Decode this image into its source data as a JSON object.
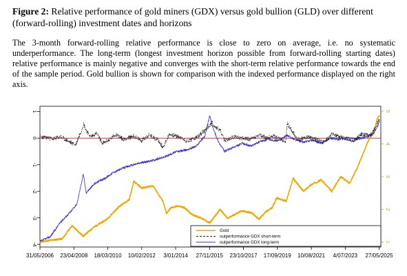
{
  "figure": {
    "label": "Figure 2:",
    "title": " Relative performance of gold miners (GDX) versus gold bullion (GLD) over different (forward-rolling) investment dates and horizons",
    "caption": "The 3-month forward-rolling relative performance is close to zero on average, i.e. no systematic underperformance. The long-term (longest investment horizon possible from forward-rolling starting dates) relative performance is mainly negative and converges with the short-term relative performance towards the end of the sample period. Gold bullion is shown for comparison with the indexed performance displayed on the right axis."
  },
  "colors": {
    "gold": "#f0a800",
    "short_term": "#222222",
    "long_term": "#3a32c8",
    "zero_line": "#e53030",
    "right_axis": "#c9a227"
  },
  "chart_data": {
    "type": "line",
    "x_tick_labels": [
      "31/05/2006",
      "23/04/2008",
      "18/03/2010",
      "10/02/2012",
      "3/01/2014",
      "27/11/2015",
      "23/10/2017",
      "17/09/2019",
      "10/08/2021",
      "4/07/2023",
      "27/05/2025"
    ],
    "x_range": [
      "2006-05-31",
      "2025-06-30"
    ],
    "y_left": {
      "ticks": [
        "1",
        "0",
        "-1",
        "-2",
        "-3",
        "-4"
      ],
      "range": [
        -4.1,
        1.2
      ]
    },
    "y_right": {
      "ticks": [
        "5",
        "4",
        "3",
        "2",
        "1"
      ],
      "range": [
        0.85,
        5.15
      ]
    },
    "reference_line": {
      "axis": "left",
      "y": 0
    },
    "legend": {
      "position": "bottom-right",
      "entries": [
        "Gold",
        "outperformance GDX short-term",
        "outperformance GDX long-term"
      ]
    },
    "series": [
      {
        "name": "Gold",
        "axis": "right",
        "style": "solid",
        "points": [
          [
            "2006-05-31",
            1.0
          ],
          [
            "2007-03-01",
            1.07
          ],
          [
            "2007-09-01",
            1.1
          ],
          [
            "2008-03-15",
            1.5
          ],
          [
            "2008-11-01",
            1.18
          ],
          [
            "2009-06-01",
            1.45
          ],
          [
            "2010-03-01",
            1.7
          ],
          [
            "2010-11-01",
            2.08
          ],
          [
            "2011-06-01",
            2.3
          ],
          [
            "2011-09-01",
            2.85
          ],
          [
            "2012-02-15",
            2.65
          ],
          [
            "2012-10-01",
            2.72
          ],
          [
            "2013-04-15",
            2.25
          ],
          [
            "2013-07-01",
            1.88
          ],
          [
            "2013-10-01",
            2.05
          ],
          [
            "2014-03-01",
            2.1
          ],
          [
            "2014-07-01",
            2.05
          ],
          [
            "2014-12-01",
            1.85
          ],
          [
            "2015-07-01",
            1.72
          ],
          [
            "2015-12-01",
            1.58
          ],
          [
            "2016-07-01",
            2.0
          ],
          [
            "2016-12-01",
            1.72
          ],
          [
            "2017-05-01",
            1.85
          ],
          [
            "2017-09-01",
            1.95
          ],
          [
            "2018-04-01",
            1.9
          ],
          [
            "2018-09-01",
            1.7
          ],
          [
            "2019-01-01",
            1.9
          ],
          [
            "2019-06-01",
            2.05
          ],
          [
            "2019-09-01",
            2.35
          ],
          [
            "2020-03-15",
            2.25
          ],
          [
            "2020-08-01",
            2.95
          ],
          [
            "2021-03-01",
            2.55
          ],
          [
            "2021-08-01",
            2.75
          ],
          [
            "2022-03-01",
            2.9
          ],
          [
            "2022-10-01",
            2.55
          ],
          [
            "2023-04-01",
            3.0
          ],
          [
            "2023-10-01",
            2.8
          ],
          [
            "2024-04-01",
            3.35
          ],
          [
            "2024-10-01",
            4.05
          ],
          [
            "2025-02-01",
            4.35
          ],
          [
            "2025-04-15",
            4.75
          ],
          [
            "2025-06-01",
            4.88
          ]
        ]
      },
      {
        "name": "outperformance GDX short-term",
        "axis": "left",
        "style": "dashed",
        "points": [
          [
            "2006-05-31",
            0.05
          ],
          [
            "2006-11-01",
            0.02
          ],
          [
            "2007-03-01",
            -0.03
          ],
          [
            "2007-08-01",
            0.05
          ],
          [
            "2008-01-01",
            -0.12
          ],
          [
            "2008-06-01",
            -0.25
          ],
          [
            "2008-11-15",
            0.55
          ],
          [
            "2008-12-15",
            0.35
          ],
          [
            "2009-04-01",
            0.05
          ],
          [
            "2009-08-01",
            0.18
          ],
          [
            "2009-12-01",
            -0.2
          ],
          [
            "2010-05-01",
            -0.05
          ],
          [
            "2010-09-01",
            0.15
          ],
          [
            "2011-02-01",
            -0.05
          ],
          [
            "2011-09-01",
            0.08
          ],
          [
            "2012-02-01",
            -0.1
          ],
          [
            "2012-07-01",
            0.12
          ],
          [
            "2013-01-01",
            -0.05
          ],
          [
            "2013-04-15",
            -0.35
          ],
          [
            "2013-09-01",
            0.15
          ],
          [
            "2014-03-01",
            0.05
          ],
          [
            "2014-09-01",
            -0.12
          ],
          [
            "2015-04-01",
            0.05
          ],
          [
            "2015-10-01",
            0.35
          ],
          [
            "2016-01-20",
            0.6
          ],
          [
            "2016-03-01",
            0.45
          ],
          [
            "2016-07-01",
            0.3
          ],
          [
            "2016-10-01",
            -0.1
          ],
          [
            "2017-05-01",
            0.05
          ],
          [
            "2018-03-01",
            -0.05
          ],
          [
            "2018-09-01",
            0.1
          ],
          [
            "2019-03-01",
            0.0
          ],
          [
            "2019-07-01",
            0.1
          ],
          [
            "2020-03-01",
            -0.15
          ],
          [
            "2020-04-01",
            0.55
          ],
          [
            "2020-07-01",
            0.3
          ],
          [
            "2020-11-01",
            -0.05
          ],
          [
            "2021-06-01",
            0.05
          ],
          [
            "2022-05-01",
            -0.15
          ],
          [
            "2022-10-01",
            0.15
          ],
          [
            "2023-06-01",
            0.0
          ],
          [
            "2024-01-01",
            -0.1
          ],
          [
            "2024-06-01",
            0.15
          ],
          [
            "2024-12-01",
            0.1
          ],
          [
            "2025-03-01",
            0.35
          ],
          [
            "2025-05-27",
            0.75
          ],
          [
            "2025-06-01",
            0.55
          ]
        ]
      },
      {
        "name": "outperformance GDX long-term",
        "axis": "left",
        "style": "solid",
        "points": [
          [
            "2006-05-31",
            -3.9
          ],
          [
            "2007-01-01",
            -3.7
          ],
          [
            "2007-08-01",
            -3.15
          ],
          [
            "2008-03-01",
            -2.75
          ],
          [
            "2008-07-01",
            -2.45
          ],
          [
            "2008-11-01",
            -1.35
          ],
          [
            "2009-01-01",
            -2.05
          ],
          [
            "2009-07-01",
            -1.7
          ],
          [
            "2010-02-01",
            -1.5
          ],
          [
            "2010-07-01",
            -1.3
          ],
          [
            "2011-03-01",
            -1.1
          ],
          [
            "2011-12-01",
            -0.95
          ],
          [
            "2012-09-01",
            -0.85
          ],
          [
            "2013-06-01",
            -0.7
          ],
          [
            "2014-01-01",
            -0.52
          ],
          [
            "2014-08-01",
            -0.45
          ],
          [
            "2015-03-01",
            -0.3
          ],
          [
            "2015-09-01",
            0.1
          ],
          [
            "2015-12-01",
            0.85
          ],
          [
            "2016-02-01",
            0.4
          ],
          [
            "2016-06-01",
            -0.15
          ],
          [
            "2016-10-01",
            -0.5
          ],
          [
            "2017-04-01",
            -0.35
          ],
          [
            "2017-10-01",
            -0.2
          ],
          [
            "2018-04-01",
            -0.3
          ],
          [
            "2018-10-01",
            -0.12
          ],
          [
            "2019-04-01",
            -0.05
          ],
          [
            "2019-10-01",
            -0.1
          ],
          [
            "2020-04-01",
            0.1
          ],
          [
            "2020-09-01",
            -0.05
          ],
          [
            "2021-03-01",
            -0.15
          ],
          [
            "2021-09-01",
            -0.08
          ],
          [
            "2022-03-01",
            -0.2
          ],
          [
            "2022-09-01",
            0.0
          ],
          [
            "2023-03-01",
            -0.05
          ],
          [
            "2023-09-01",
            0.02
          ],
          [
            "2024-03-01",
            -0.05
          ],
          [
            "2024-09-01",
            0.05
          ],
          [
            "2025-02-01",
            0.15
          ],
          [
            "2025-05-01",
            0.45
          ],
          [
            "2025-06-01",
            0.7
          ]
        ]
      }
    ]
  }
}
